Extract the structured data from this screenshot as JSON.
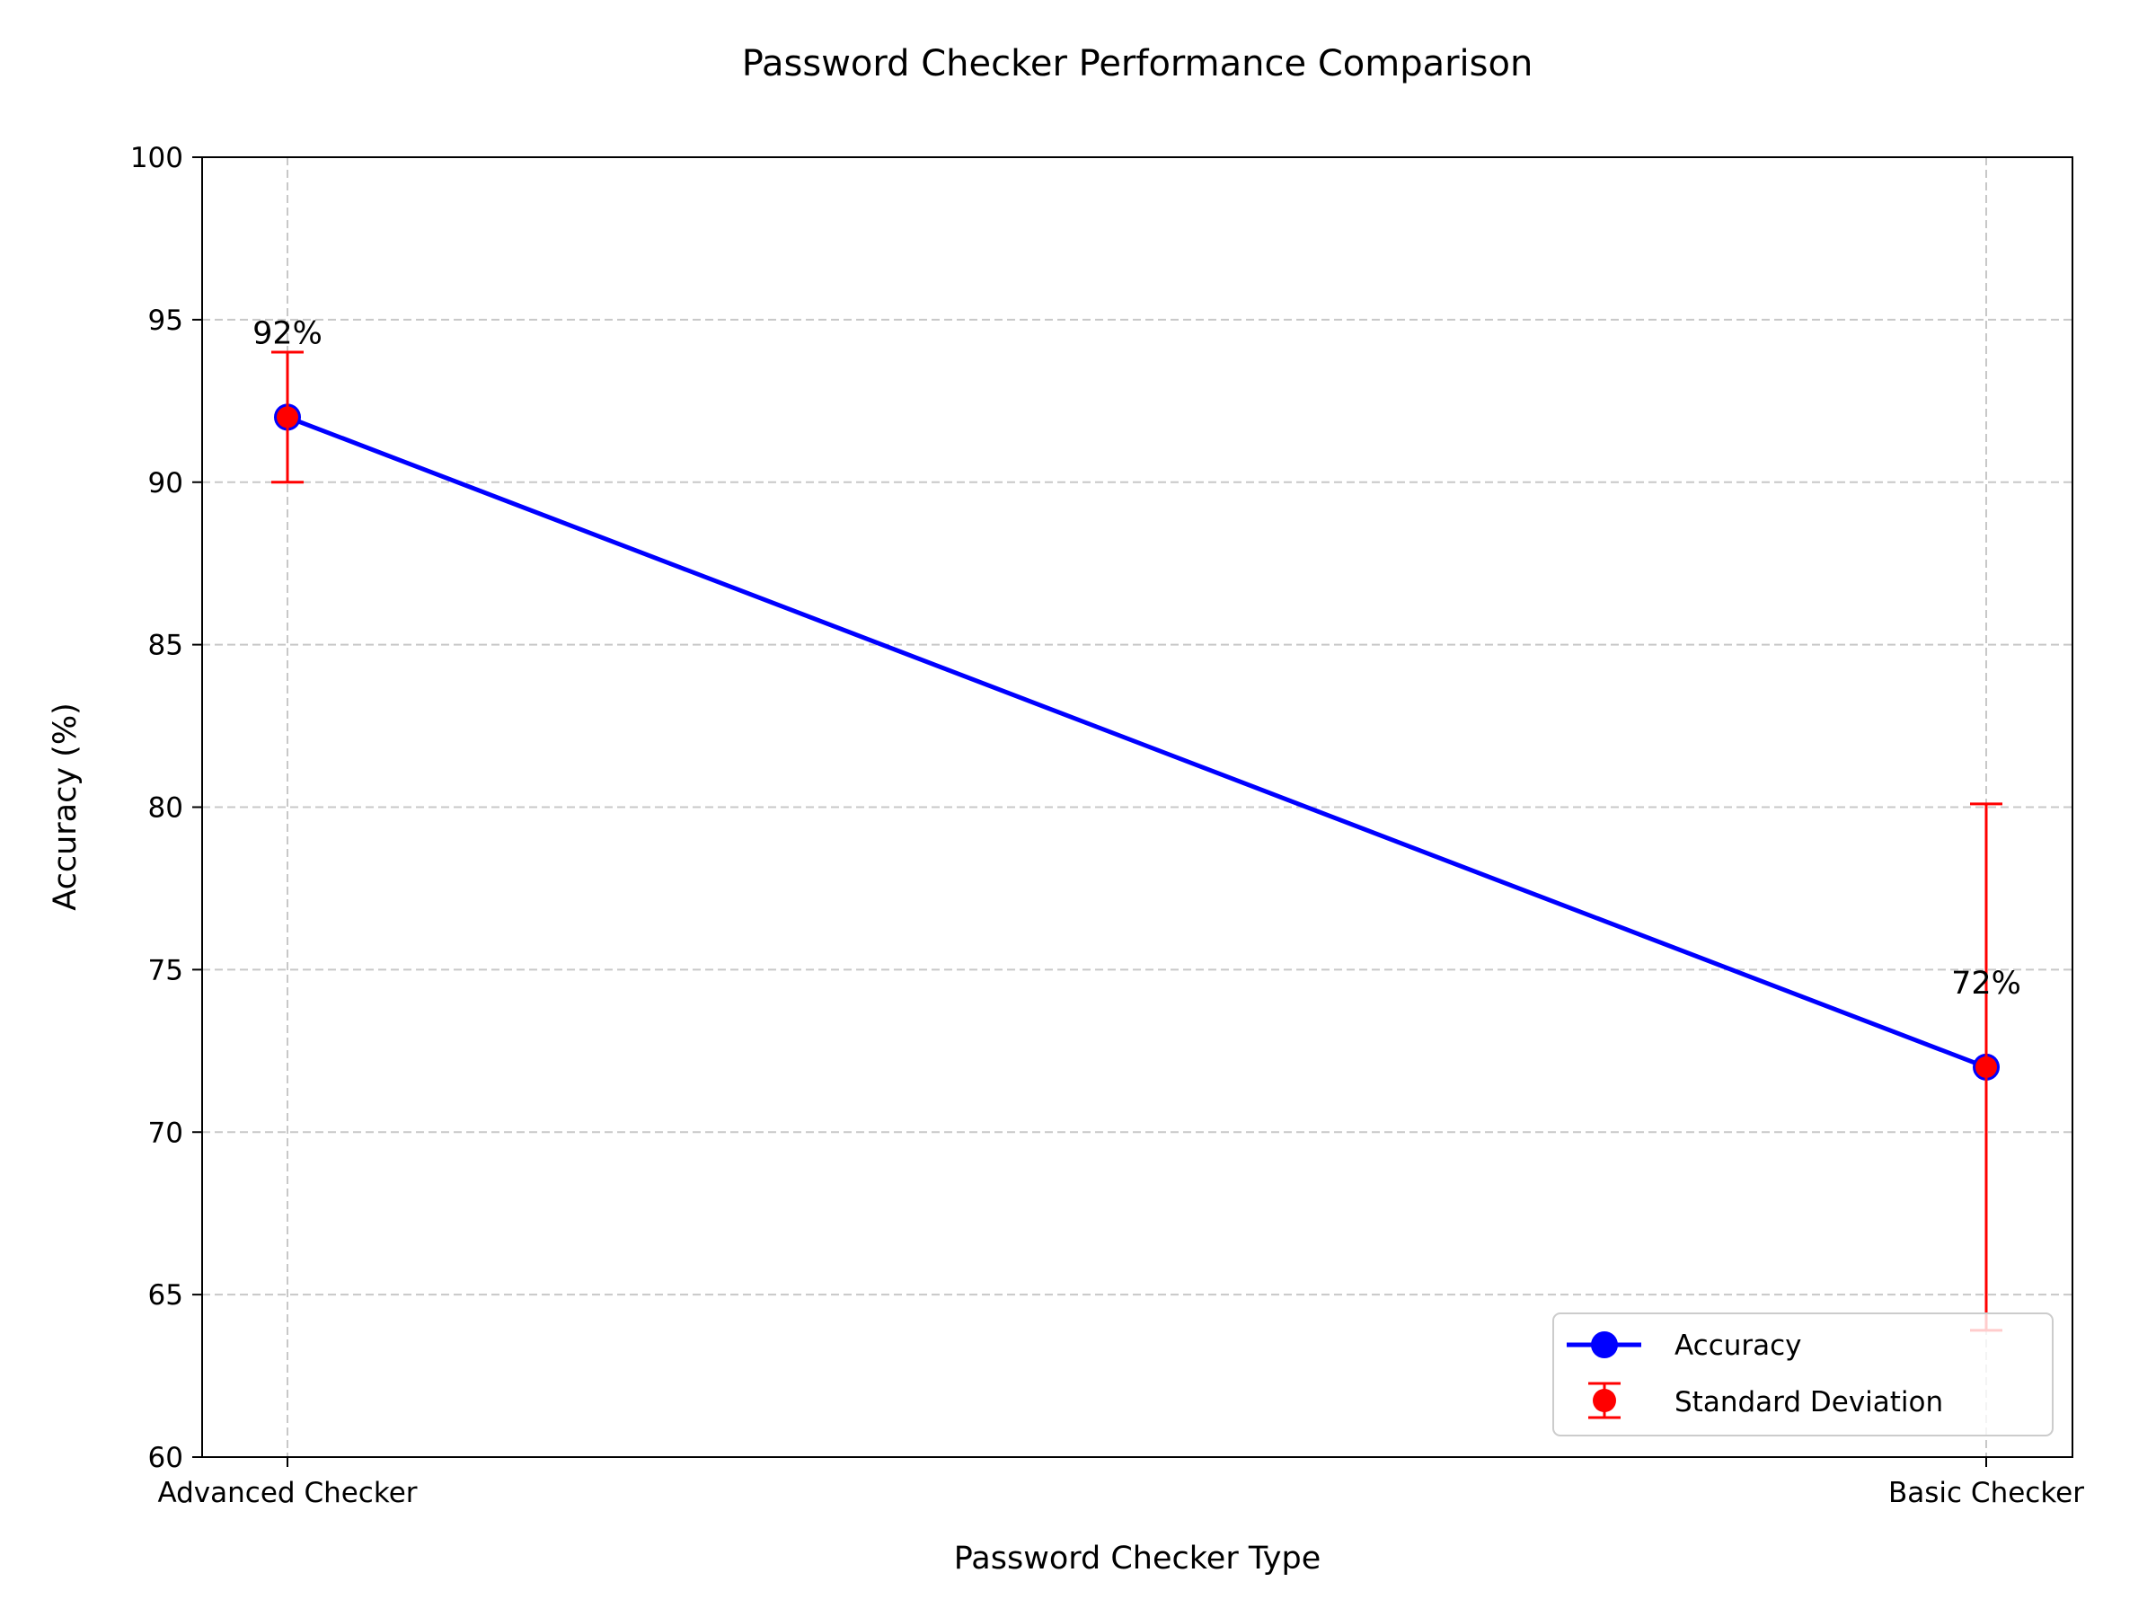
{
  "chart_data": {
    "type": "line",
    "title": "Password Checker Performance Comparison",
    "xlabel": "Password Checker Type",
    "ylabel": "Accuracy (%)",
    "categories": [
      "Advanced Checker",
      "Basic Checker"
    ],
    "series": [
      {
        "name": "Accuracy",
        "values": [
          92,
          72
        ],
        "color": "#0000ff",
        "error_name": "Standard Deviation",
        "error": [
          2,
          8.1
        ],
        "error_color": "#ff0000",
        "point_labels": [
          "92%",
          "72%"
        ]
      }
    ],
    "ylim": [
      60,
      100
    ],
    "yticks": [
      "60",
      "65",
      "70",
      "75",
      "80",
      "85",
      "90",
      "95",
      "100"
    ],
    "grid": true,
    "legend_position": "lower right"
  }
}
